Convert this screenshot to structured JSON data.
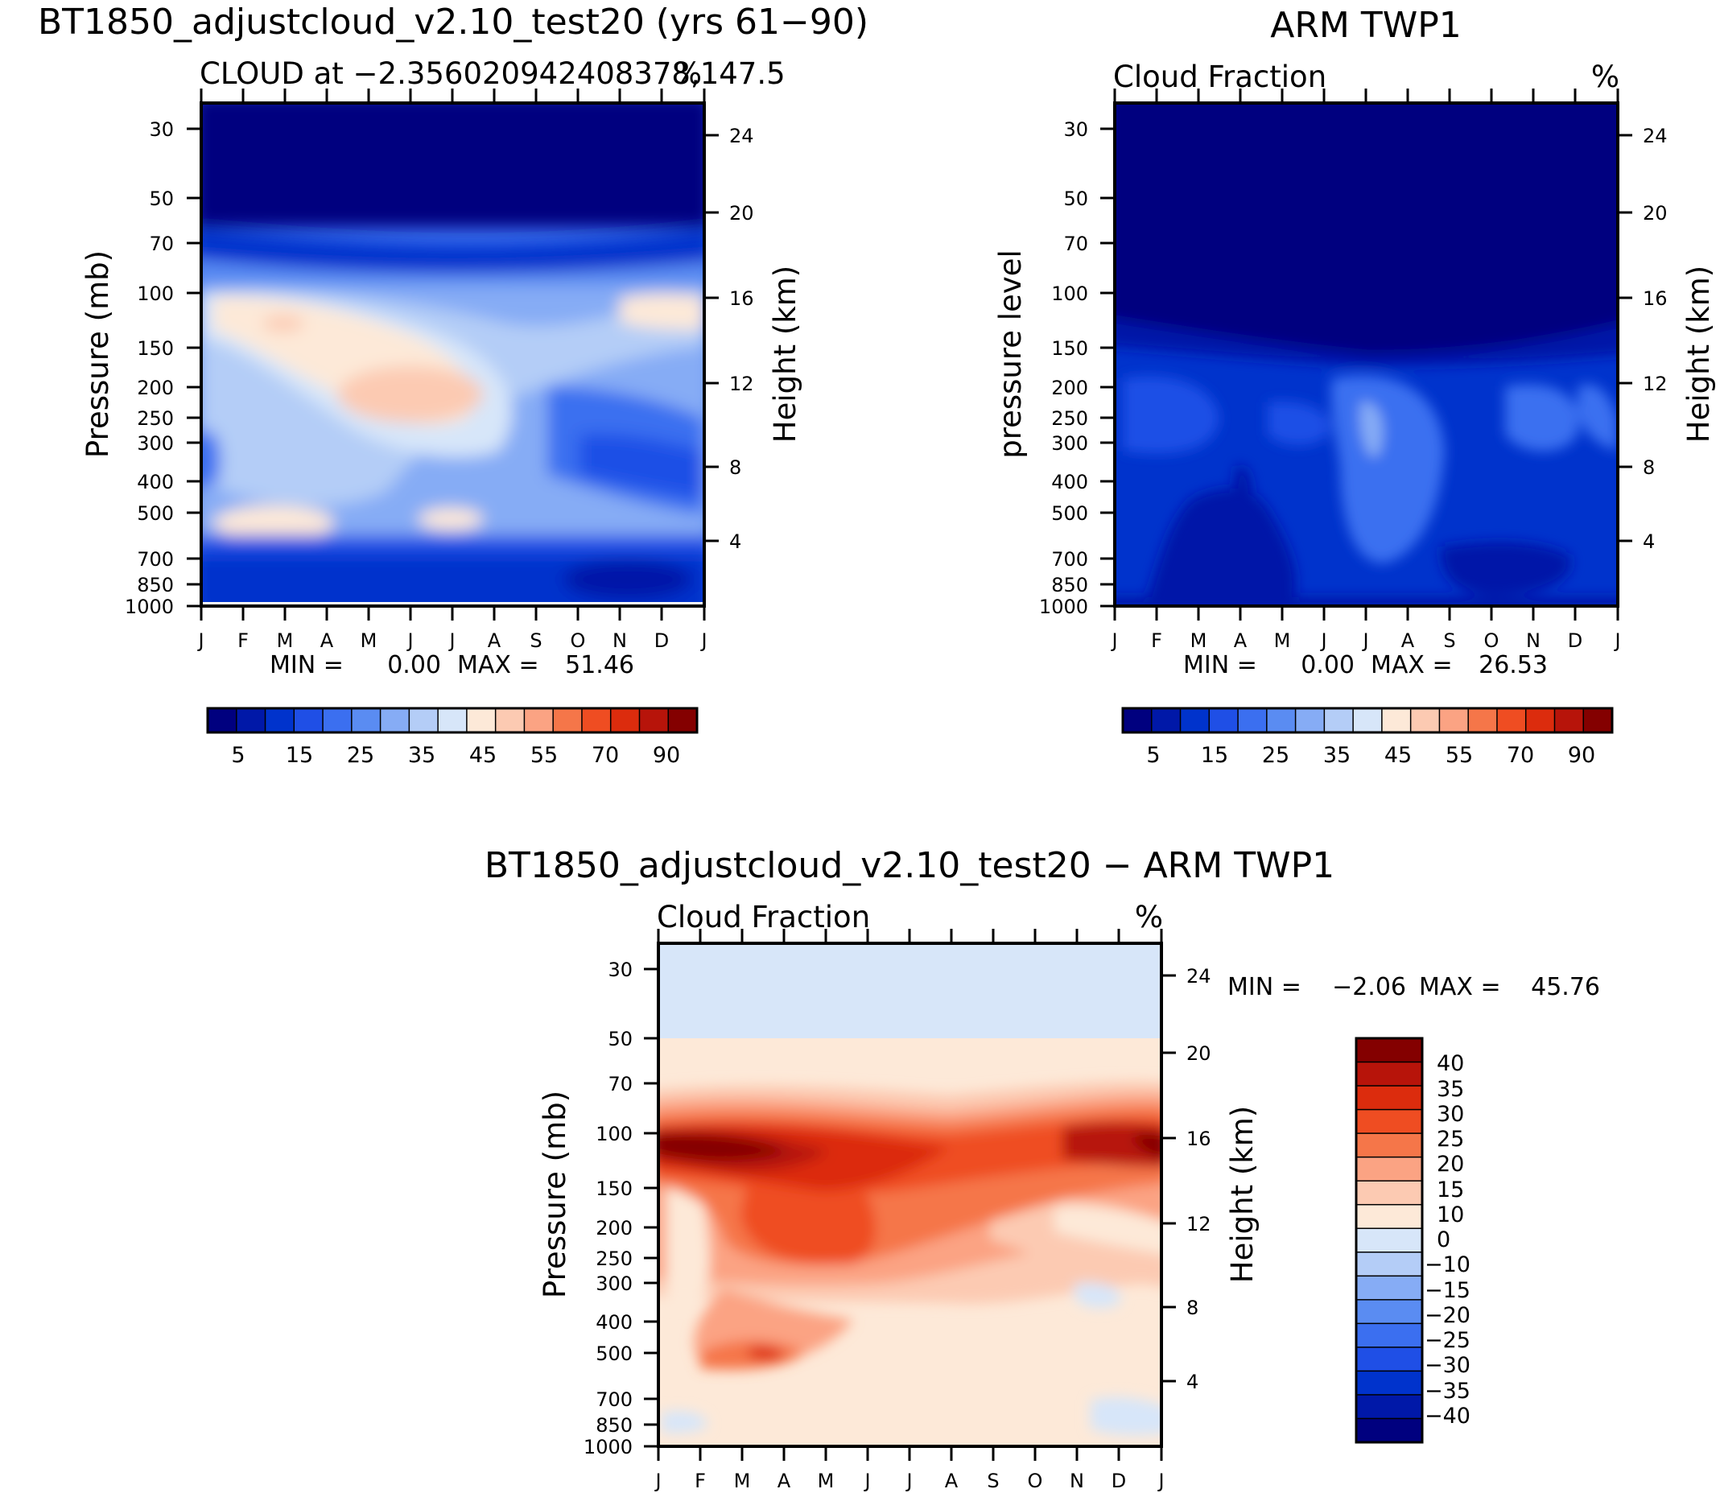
{
  "chart_data": [
    {
      "type": "heatmap",
      "title": "BT1850_adjustcloud_v2.10_test20 (yrs 61-90)",
      "subtitle_left": "CLOUD at -2.356020942408378,147.5",
      "units": "%",
      "xlabel": "",
      "ylabel": "Pressure (mb)",
      "ylabel_right": "Height (km)",
      "x_ticks": [
        "J",
        "F",
        "M",
        "A",
        "M",
        "J",
        "J",
        "A",
        "S",
        "O",
        "N",
        "D",
        "J"
      ],
      "y_ticks": [
        "30",
        "50",
        "70",
        "100",
        "150",
        "200",
        "250",
        "300",
        "400",
        "500",
        "700",
        "850",
        "1000"
      ],
      "y_ticks_right": [
        "24",
        "20",
        "16",
        "12",
        "8",
        "4"
      ],
      "min_label": "MIN =",
      "min_value": "0.00",
      "max_label": "MAX =",
      "max_value": "51.46",
      "colorbar_labels": [
        "5",
        "15",
        "25",
        "35",
        "45",
        "55",
        "70",
        "90"
      ],
      "levels": [
        5,
        10,
        15,
        20,
        25,
        30,
        35,
        40,
        45,
        50,
        55,
        60,
        70,
        80,
        90
      ]
    },
    {
      "type": "heatmap",
      "title": "ARM TWP1",
      "subtitle_left": "Cloud Fraction",
      "units": "%",
      "xlabel": "",
      "ylabel": "pressure level",
      "ylabel_right": "Height (km)",
      "x_ticks": [
        "J",
        "F",
        "M",
        "A",
        "M",
        "J",
        "J",
        "A",
        "S",
        "O",
        "N",
        "D",
        "J"
      ],
      "y_ticks": [
        "30",
        "50",
        "70",
        "100",
        "150",
        "200",
        "250",
        "300",
        "400",
        "500",
        "700",
        "850",
        "1000"
      ],
      "y_ticks_right": [
        "24",
        "20",
        "16",
        "12",
        "8",
        "4"
      ],
      "min_label": "MIN =",
      "min_value": "0.00",
      "max_label": "MAX =",
      "max_value": "26.53",
      "colorbar_labels": [
        "5",
        "15",
        "25",
        "35",
        "45",
        "55",
        "70",
        "90"
      ],
      "levels": [
        5,
        10,
        15,
        20,
        25,
        30,
        35,
        40,
        45,
        50,
        55,
        60,
        70,
        80,
        90
      ]
    },
    {
      "type": "heatmap",
      "title": "BT1850_adjustcloud_v2.10_test20 - ARM TWP1",
      "subtitle_left": "Cloud Fraction",
      "units": "%",
      "xlabel": "",
      "ylabel": "Pressure (mb)",
      "ylabel_right": "Height (km)",
      "x_ticks": [
        "J",
        "F",
        "M",
        "A",
        "M",
        "J",
        "J",
        "A",
        "S",
        "O",
        "N",
        "D",
        "J"
      ],
      "y_ticks": [
        "30",
        "50",
        "70",
        "100",
        "150",
        "200",
        "250",
        "300",
        "400",
        "500",
        "700",
        "850",
        "1000"
      ],
      "y_ticks_right": [
        "24",
        "20",
        "16",
        "12",
        "8",
        "4"
      ],
      "min_label": "MIN =",
      "min_value": "-2.06",
      "max_label": "MAX =",
      "max_value": "45.76",
      "colorbar_labels": [
        "40",
        "35",
        "30",
        "25",
        "20",
        "15",
        "10",
        "0",
        "-10",
        "-15",
        "-20",
        "-25",
        "-30",
        "-35",
        "-40"
      ],
      "levels": [
        -40,
        -35,
        -30,
        -25,
        -20,
        -15,
        -10,
        0,
        10,
        15,
        20,
        25,
        30,
        35,
        40
      ]
    }
  ],
  "colors": {
    "absolute_scale": [
      "#00007f",
      "#0018a8",
      "#0033cc",
      "#1f4fe6",
      "#3b6ff0",
      "#5a8cf2",
      "#86acf5",
      "#b4cdf7",
      "#d7e6f9",
      "#fde9d8",
      "#fccab2",
      "#fba383",
      "#f57649",
      "#ef4d22",
      "#dc2c0d",
      "#b7140a",
      "#840000"
    ],
    "difference_scale": [
      "#00007f",
      "#0018a8",
      "#0033cc",
      "#1f4fe6",
      "#3b6ff0",
      "#5a8cf2",
      "#86acf5",
      "#b4cdf7",
      "#d7e6f9",
      "#fde9d8",
      "#fccab2",
      "#fba383",
      "#f57649",
      "#ef4d22",
      "#dc2c0d",
      "#b7140a",
      "#840000"
    ]
  }
}
